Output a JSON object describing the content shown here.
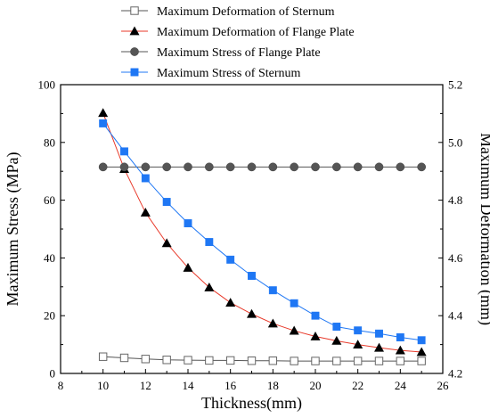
{
  "chart_data": {
    "type": "line",
    "title": "",
    "xlabel": "Thickness(mm)",
    "ylabel_left": "Maximum Stress (MPa)",
    "ylabel_right": "Maximum Deformation (mm)",
    "xlim": [
      8,
      26
    ],
    "xticks": [
      "8",
      "10",
      "12",
      "14",
      "16",
      "18",
      "20",
      "22",
      "24",
      "26"
    ],
    "ylim_left": [
      0,
      100
    ],
    "yticks_left": [
      "0",
      "20",
      "40",
      "60",
      "80",
      "100"
    ],
    "ylim_right": [
      4.2,
      5.2
    ],
    "yticks_right": [
      "4.2",
      "4.4",
      "4.6",
      "4.8",
      "5.0",
      "5.2"
    ],
    "grid": false,
    "legend_position": "top",
    "x": [
      10,
      11,
      12,
      13,
      14,
      15,
      16,
      17,
      18,
      19,
      20,
      21,
      22,
      23,
      24,
      25
    ],
    "series": [
      {
        "name": "Maximum Deformation of Sternum",
        "axis": "right",
        "color": "#555555",
        "marker": "open-square",
        "values": [
          4.258,
          4.254,
          4.25,
          4.247,
          4.246,
          4.245,
          4.245,
          4.244,
          4.244,
          4.243,
          4.243,
          4.243,
          4.243,
          4.243,
          4.243,
          4.243
        ]
      },
      {
        "name": "Maximum Deformation of Flange Plate",
        "axis": "right",
        "color": "#e8392a",
        "marker": "filled-triangle",
        "values": [
          5.102,
          4.908,
          4.757,
          4.651,
          4.566,
          4.498,
          4.445,
          4.406,
          4.373,
          4.348,
          4.328,
          4.313,
          4.3,
          4.289,
          4.28,
          4.274
        ]
      },
      {
        "name": "Maximum Stress of Flange Plate",
        "axis": "left",
        "color": "#555555",
        "marker": "filled-circle",
        "values": [
          71.5,
          71.5,
          71.5,
          71.5,
          71.5,
          71.5,
          71.5,
          71.5,
          71.5,
          71.5,
          71.5,
          71.5,
          71.5,
          71.5,
          71.5,
          71.5
        ]
      },
      {
        "name": "Maximum Stress of Sternum",
        "axis": "left",
        "color": "#1f77f4",
        "marker": "filled-square",
        "values": [
          86.6,
          76.9,
          67.6,
          59.4,
          52.0,
          45.5,
          39.4,
          33.8,
          28.8,
          24.3,
          20.0,
          16.2,
          14.9,
          13.8,
          12.5,
          11.5
        ]
      }
    ]
  }
}
